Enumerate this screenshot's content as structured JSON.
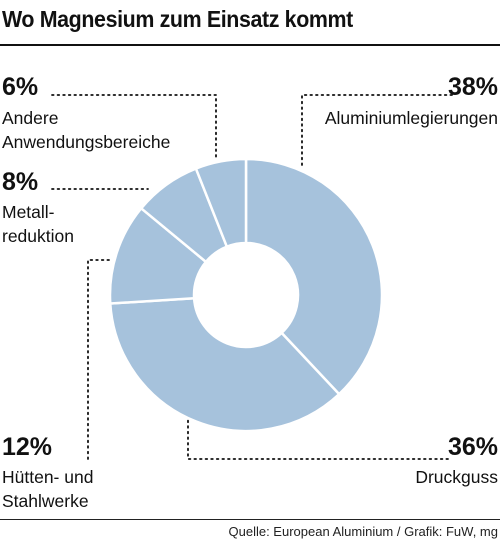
{
  "header": {
    "title": "Wo Magnesium zum Einsatz kommt"
  },
  "footer": {
    "source": "Quelle: European Aluminium / Grafik: FuW, mg"
  },
  "colors": {
    "slice_fill": "#a6c2dc",
    "slice_border": "#ffffff",
    "text": "#111111"
  },
  "chart_data": {
    "type": "pie",
    "variant": "donut",
    "title": "Wo Magnesium zum Einsatz kommt",
    "start": "12 o'clock, clockwise",
    "slices": [
      {
        "pct_label": "38%",
        "value": 38,
        "label_lines": [
          "Aluminiumlegierungen"
        ]
      },
      {
        "pct_label": "36%",
        "value": 36,
        "label_lines": [
          "Druckguss"
        ]
      },
      {
        "pct_label": "12%",
        "value": 12,
        "label_lines": [
          "Hütten- und",
          "Stahlwerke"
        ]
      },
      {
        "pct_label": "8%",
        "value": 8,
        "label_lines": [
          "Metall-",
          "reduktion"
        ]
      },
      {
        "pct_label": "6%",
        "value": 6,
        "label_lines": [
          "Andere",
          "Anwendungsbereiche"
        ]
      }
    ]
  }
}
